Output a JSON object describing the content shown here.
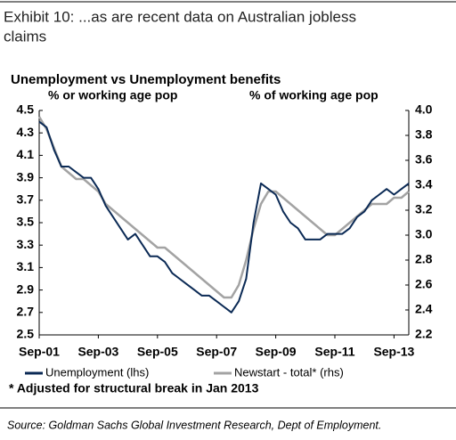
{
  "header": {
    "title_line1": "Exhibit 10: ...as are recent data on Australian jobless",
    "title_line2": "claims"
  },
  "chart_data": {
    "type": "line",
    "title": "Unemployment vs Unemployment benefits",
    "y_label": "% or working age pop",
    "y2_label": "% of working age pop",
    "categories": [
      "Sep-01",
      null,
      null,
      null,
      null,
      null,
      null,
      null,
      "Sep-03",
      null,
      null,
      null,
      null,
      null,
      null,
      null,
      "Sep-05",
      null,
      null,
      null,
      null,
      null,
      null,
      null,
      "Sep-07",
      null,
      null,
      null,
      null,
      null,
      null,
      null,
      "Sep-09",
      null,
      null,
      null,
      null,
      null,
      null,
      null,
      "Sep-11",
      null,
      null,
      null,
      null,
      null,
      null,
      null,
      "Sep-13",
      null,
      null
    ],
    "series": [
      {
        "name": "Unemployment (lhs)",
        "color": "#0b2a55",
        "axis": "y",
        "values": [
          4.4,
          4.35,
          4.15,
          4.0,
          4.0,
          3.95,
          3.9,
          3.9,
          3.8,
          3.65,
          3.55,
          3.45,
          3.35,
          3.4,
          3.3,
          3.2,
          3.2,
          3.15,
          3.05,
          3.0,
          2.95,
          2.9,
          2.85,
          2.85,
          2.8,
          2.75,
          2.7,
          2.8,
          3.0,
          3.5,
          3.85,
          3.8,
          3.75,
          3.6,
          3.5,
          3.45,
          3.35,
          3.35,
          3.35,
          3.4,
          3.4,
          3.4,
          3.45,
          3.55,
          3.6,
          3.7,
          3.75,
          3.8,
          3.75,
          3.8,
          3.85
        ]
      },
      {
        "name": "Newstart - total* (rhs)",
        "color": "#a3a3a3",
        "axis": "y2",
        "values": [
          3.95,
          3.85,
          3.7,
          3.55,
          3.5,
          3.45,
          3.45,
          3.4,
          3.35,
          3.25,
          3.2,
          3.15,
          3.1,
          3.05,
          3.0,
          2.95,
          2.9,
          2.9,
          2.85,
          2.8,
          2.75,
          2.7,
          2.65,
          2.6,
          2.55,
          2.5,
          2.5,
          2.6,
          2.8,
          3.05,
          3.25,
          3.35,
          3.35,
          3.3,
          3.25,
          3.2,
          3.15,
          3.1,
          3.05,
          3.0,
          3.0,
          3.05,
          3.1,
          3.15,
          3.2,
          3.25,
          3.25,
          3.25,
          3.3,
          3.3,
          3.35
        ]
      }
    ],
    "ylim": [
      2.5,
      4.5
    ],
    "yticks": [
      2.5,
      2.7,
      2.9,
      3.1,
      3.3,
      3.5,
      3.7,
      3.9,
      4.1,
      4.3,
      4.5
    ],
    "y2lim": [
      2.2,
      4.0
    ],
    "y2ticks": [
      2.2,
      2.4,
      2.6,
      2.8,
      {
        "value": 3.0,
        "label": "3.0"
      },
      3.2,
      3.4,
      3.6,
      3.8,
      {
        "value": 4.0,
        "label": "4.0"
      }
    ],
    "grid": false,
    "footnote": "* Adjusted for structural break in Jan 2013"
  },
  "source": "Source: Goldman Sachs Global Investment Research, Dept of Employment."
}
